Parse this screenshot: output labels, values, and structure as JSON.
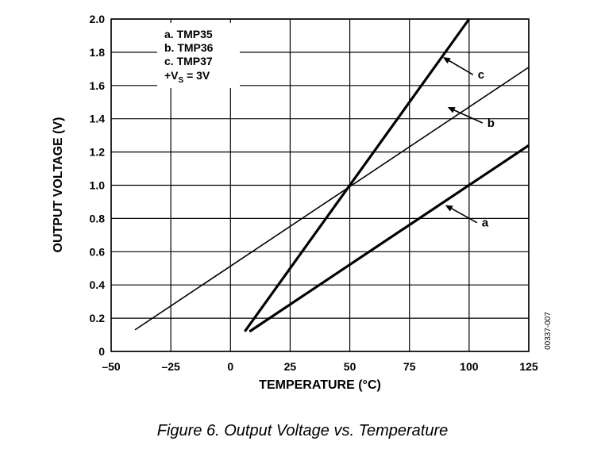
{
  "caption": "Figure 6. Output Voltage vs. Temperature",
  "doc_id": "00337-007",
  "chart_data": {
    "type": "line",
    "xlabel": "TEMPERATURE (°C)",
    "ylabel": "OUTPUT VOLTAGE (V)",
    "xlim": [
      -50,
      125
    ],
    "ylim": [
      0,
      2.0
    ],
    "x_ticks": [
      -50,
      -25,
      0,
      25,
      50,
      75,
      100,
      125
    ],
    "x_tick_labels": [
      "–50",
      "–25",
      "0",
      "25",
      "50",
      "75",
      "100",
      "125"
    ],
    "y_ticks": [
      0,
      0.2,
      0.4,
      0.6,
      0.8,
      1.0,
      1.2,
      1.4,
      1.6,
      1.8,
      2.0
    ],
    "y_tick_labels": [
      "0",
      "0.2",
      "0.4",
      "0.6",
      "0.8",
      "1.0",
      "1.2",
      "1.4",
      "1.6",
      "1.8",
      "2.0"
    ],
    "grid": true,
    "legend_placement": "top-left",
    "legend": {
      "lines": [
        "a.  TMP35",
        "b.  TMP36",
        "c.  TMP37"
      ],
      "supply_prefix": "+V",
      "supply_sub": "S",
      "supply_suffix": " = 3V"
    },
    "series": [
      {
        "name": "a",
        "x": [
          8,
          125
        ],
        "y": [
          0.12,
          1.24
        ],
        "stroke": "bold",
        "label_x": 90,
        "label_y": 0.88,
        "arrow_x": 90,
        "arrow_y": 0.88
      },
      {
        "name": "b",
        "x": [
          -40,
          125
        ],
        "y": [
          0.13,
          1.71
        ],
        "stroke": "thin",
        "label_x": 91,
        "label_y": 1.47,
        "arrow_x": 91,
        "arrow_y": 1.47
      },
      {
        "name": "c",
        "x": [
          6,
          100
        ],
        "y": [
          0.12,
          2.0
        ],
        "stroke": "bold",
        "label_x": 89,
        "label_y": 1.77,
        "arrow_x": 89,
        "arrow_y": 1.77
      }
    ]
  }
}
